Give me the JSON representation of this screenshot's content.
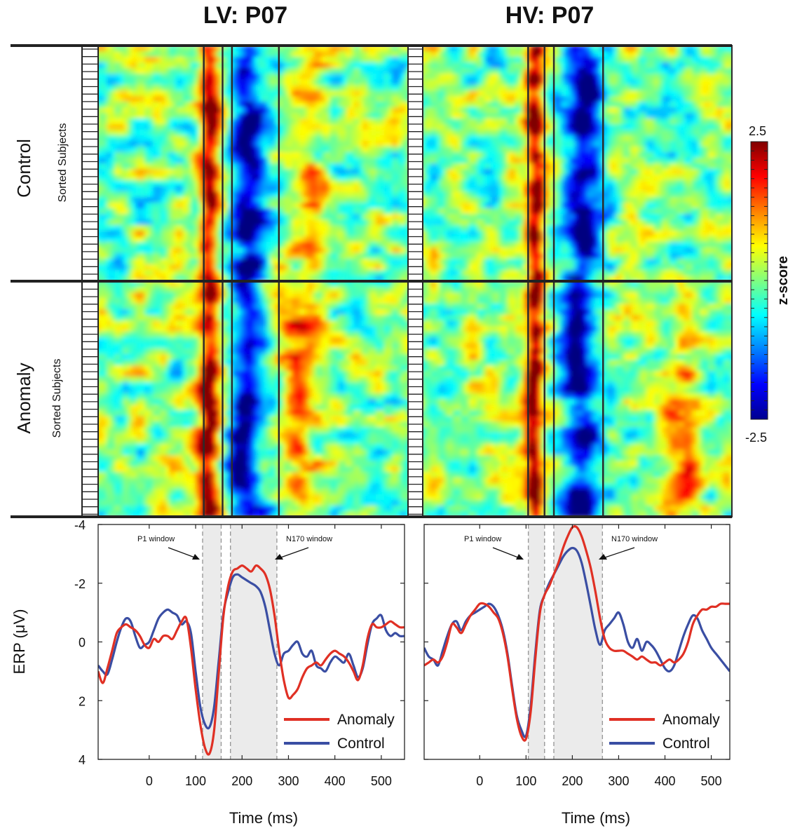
{
  "titles": {
    "left": "LV: P07",
    "right": "HV: P07"
  },
  "row_labels": {
    "control": "Control",
    "anomaly": "Anomaly"
  },
  "sorted_label": "Sorted Subjects",
  "colorbar": {
    "label": "z-score",
    "max_label": "2.5",
    "min_label": "-2.5",
    "min": -2.5,
    "max": 2.5
  },
  "axis": {
    "xlabel": "Time (ms)",
    "ylabel": "ERP (μV)"
  },
  "window_labels": {
    "p1": "P1 window",
    "n170": "N170 window"
  },
  "legend": {
    "anomaly": "Anomaly",
    "control": "Control"
  },
  "colors": {
    "anomaly": "#e03024",
    "control": "#3a4ea3",
    "window_fill": "#ebebeb",
    "frame": "#222222"
  },
  "chart_data": [
    {
      "type": "heatmap",
      "panel": "LV",
      "title": "LV: P07",
      "rows": [
        "Control",
        "Anomaly"
      ],
      "xlim": [
        -110,
        550
      ],
      "vlines_ms": [
        115,
        155,
        175,
        275
      ],
      "clim": [
        -2.5,
        2.5
      ],
      "features": [
        {
          "row": "Control",
          "t": 125,
          "width": 22,
          "z": 2.2
        },
        {
          "row": "Control",
          "t": 210,
          "width": 35,
          "z": -2.3
        },
        {
          "row": "Control",
          "t": 320,
          "width": 40,
          "z": 0.9
        },
        {
          "row": "Anomaly",
          "t": 125,
          "width": 22,
          "z": 2.4
        },
        {
          "row": "Anomaly",
          "t": 210,
          "width": 35,
          "z": -2.3
        },
        {
          "row": "Anomaly",
          "t": 320,
          "width": 45,
          "z": 1.1
        }
      ]
    },
    {
      "type": "heatmap",
      "panel": "HV",
      "title": "HV: P07",
      "rows": [
        "Control",
        "Anomaly"
      ],
      "xlim": [
        -120,
        540
      ],
      "vlines_ms": [
        105,
        140,
        160,
        265
      ],
      "clim": [
        -2.5,
        2.5
      ],
      "features": [
        {
          "row": "Control",
          "t": 120,
          "width": 20,
          "z": 2.4
        },
        {
          "row": "Control",
          "t": 215,
          "width": 40,
          "z": -2.4
        },
        {
          "row": "Anomaly",
          "t": 120,
          "width": 20,
          "z": 2.4
        },
        {
          "row": "Anomaly",
          "t": 215,
          "width": 40,
          "z": -2.4
        },
        {
          "row": "Anomaly",
          "t": 430,
          "width": 40,
          "z": 1.0
        }
      ]
    },
    {
      "type": "line",
      "panel": "LV",
      "xlabel": "Time (ms)",
      "ylabel": "ERP (μV)",
      "xlim": [
        -110,
        550
      ],
      "ylim": [
        4,
        -4
      ],
      "xticks": [
        0,
        100,
        200,
        300,
        400,
        500
      ],
      "yticks": [
        -4,
        -2,
        0,
        2,
        4
      ],
      "windows": [
        {
          "name": "P1 window",
          "range": [
            115,
            155
          ]
        },
        {
          "name": "N170 window",
          "range": [
            175,
            275
          ]
        }
      ],
      "series": [
        {
          "name": "Anomaly",
          "x": [
            -110,
            -100,
            -90,
            -80,
            -70,
            -60,
            -50,
            -40,
            -30,
            -20,
            -10,
            0,
            10,
            20,
            30,
            40,
            50,
            60,
            70,
            80,
            90,
            100,
            110,
            120,
            130,
            140,
            150,
            160,
            170,
            180,
            190,
            200,
            210,
            220,
            230,
            240,
            250,
            260,
            270,
            280,
            290,
            300,
            310,
            320,
            330,
            340,
            350,
            360,
            370,
            380,
            390,
            400,
            410,
            420,
            430,
            440,
            450,
            460,
            470,
            480,
            490,
            500,
            510,
            520,
            530,
            540,
            550
          ],
          "y": [
            1.0,
            1.4,
            0.9,
            0.3,
            -0.3,
            -0.5,
            -0.6,
            -0.5,
            -0.4,
            -0.2,
            0.1,
            0.2,
            -0.1,
            0.0,
            -0.2,
            -0.2,
            -0.1,
            -0.4,
            -0.7,
            -0.8,
            0.2,
            1.6,
            2.8,
            3.6,
            3.8,
            3.0,
            1.0,
            -0.9,
            -1.9,
            -2.4,
            -2.5,
            -2.6,
            -2.5,
            -2.4,
            -2.6,
            -2.5,
            -2.3,
            -1.8,
            -0.9,
            0.3,
            1.3,
            1.9,
            1.8,
            1.6,
            1.2,
            0.9,
            0.8,
            0.7,
            0.8,
            0.6,
            0.4,
            0.3,
            0.4,
            0.5,
            0.7,
            1.0,
            1.3,
            0.8,
            -0.1,
            -0.6,
            -0.5,
            -0.5,
            -0.6,
            -0.7,
            -0.6,
            -0.5,
            -0.5
          ]
        },
        {
          "name": "Control",
          "x": [
            -110,
            -100,
            -90,
            -80,
            -70,
            -60,
            -50,
            -40,
            -30,
            -20,
            -10,
            0,
            10,
            20,
            30,
            40,
            50,
            60,
            70,
            80,
            90,
            100,
            110,
            120,
            130,
            140,
            150,
            160,
            170,
            180,
            190,
            200,
            210,
            220,
            230,
            240,
            250,
            260,
            270,
            280,
            290,
            300,
            310,
            320,
            330,
            340,
            350,
            360,
            370,
            380,
            390,
            400,
            410,
            420,
            430,
            440,
            450,
            460,
            470,
            480,
            490,
            500,
            510,
            520,
            530,
            540,
            550
          ],
          "y": [
            0.8,
            1.0,
            1.1,
            0.6,
            0.0,
            -0.5,
            -0.8,
            -0.7,
            -0.2,
            0.2,
            0.1,
            0.0,
            -0.4,
            -0.8,
            -1.0,
            -1.1,
            -1.0,
            -0.9,
            -0.6,
            -0.7,
            -0.3,
            1.0,
            2.2,
            2.8,
            2.9,
            2.2,
            0.6,
            -1.0,
            -1.7,
            -2.2,
            -2.3,
            -2.2,
            -2.1,
            -2.0,
            -1.9,
            -1.7,
            -1.2,
            -0.4,
            0.4,
            0.8,
            0.4,
            0.3,
            0.1,
            0.0,
            0.4,
            0.5,
            0.3,
            0.8,
            0.9,
            1.0,
            0.7,
            0.5,
            0.6,
            0.7,
            0.4,
            0.8,
            1.2,
            0.9,
            0.1,
            -0.6,
            -0.8,
            -0.9,
            -0.4,
            -0.2,
            -0.3,
            -0.2,
            -0.2
          ]
        }
      ]
    },
    {
      "type": "line",
      "panel": "HV",
      "xlabel": "Time (ms)",
      "ylabel": "",
      "xlim": [
        -120,
        540
      ],
      "ylim": [
        4,
        -4
      ],
      "xticks": [
        0,
        100,
        200,
        300,
        400,
        500
      ],
      "yticks": [
        -4,
        -2,
        0,
        2,
        4
      ],
      "windows": [
        {
          "name": "P1 window",
          "range": [
            105,
            140
          ]
        },
        {
          "name": "N170 window",
          "range": [
            160,
            265
          ]
        }
      ],
      "series": [
        {
          "name": "Anomaly",
          "x": [
            -120,
            -110,
            -100,
            -90,
            -80,
            -70,
            -60,
            -50,
            -40,
            -30,
            -20,
            -10,
            0,
            10,
            20,
            30,
            40,
            50,
            60,
            70,
            80,
            90,
            100,
            110,
            120,
            130,
            140,
            150,
            160,
            170,
            180,
            190,
            200,
            210,
            220,
            230,
            240,
            250,
            260,
            270,
            280,
            290,
            300,
            310,
            320,
            330,
            340,
            350,
            360,
            370,
            380,
            390,
            400,
            410,
            420,
            430,
            440,
            450,
            460,
            470,
            480,
            490,
            500,
            510,
            520,
            530,
            540
          ],
          "y": [
            0.8,
            0.7,
            0.6,
            0.7,
            0.5,
            0.0,
            -0.6,
            -0.5,
            -0.3,
            -0.6,
            -0.9,
            -1.1,
            -1.3,
            -1.3,
            -1.2,
            -1.0,
            -0.8,
            -0.3,
            0.5,
            1.6,
            2.6,
            3.2,
            3.3,
            2.4,
            0.6,
            -1.0,
            -1.6,
            -1.9,
            -2.3,
            -2.7,
            -3.2,
            -3.6,
            -3.9,
            -3.9,
            -3.6,
            -3.1,
            -2.5,
            -1.7,
            -0.8,
            -0.1,
            0.2,
            0.3,
            0.3,
            0.3,
            0.4,
            0.5,
            0.6,
            0.5,
            0.6,
            0.7,
            0.7,
            0.8,
            0.7,
            0.6,
            0.7,
            0.6,
            0.4,
            0.0,
            -0.6,
            -0.9,
            -1.1,
            -1.1,
            -1.2,
            -1.2,
            -1.3,
            -1.3,
            -1.3
          ]
        },
        {
          "name": "Control",
          "x": [
            -120,
            -110,
            -100,
            -90,
            -80,
            -70,
            -60,
            -50,
            -40,
            -30,
            -20,
            -10,
            0,
            10,
            20,
            30,
            40,
            50,
            60,
            70,
            80,
            90,
            100,
            110,
            120,
            130,
            140,
            150,
            160,
            170,
            180,
            190,
            200,
            210,
            220,
            230,
            240,
            250,
            260,
            270,
            280,
            290,
            300,
            310,
            320,
            330,
            340,
            350,
            360,
            370,
            380,
            390,
            400,
            410,
            420,
            430,
            440,
            450,
            460,
            470,
            480,
            490,
            500,
            510,
            520,
            530,
            540
          ],
          "y": [
            0.2,
            0.5,
            0.6,
            0.8,
            0.3,
            -0.2,
            -0.6,
            -0.7,
            -0.4,
            -0.7,
            -0.9,
            -1.0,
            -1.1,
            -1.2,
            -1.3,
            -1.2,
            -0.9,
            -0.4,
            0.4,
            1.5,
            2.5,
            3.0,
            3.2,
            2.2,
            0.4,
            -1.1,
            -1.6,
            -2.0,
            -2.3,
            -2.6,
            -2.9,
            -3.1,
            -3.2,
            -3.1,
            -2.7,
            -2.0,
            -1.2,
            -0.4,
            0.1,
            -0.4,
            -0.6,
            -0.8,
            -1.0,
            -0.6,
            0.0,
            0.2,
            -0.1,
            0.3,
            0.0,
            0.1,
            0.3,
            0.6,
            0.9,
            1.0,
            0.8,
            0.3,
            -0.2,
            -0.6,
            -0.9,
            -0.8,
            -0.4,
            -0.1,
            0.2,
            0.4,
            0.6,
            0.8,
            1.0
          ]
        }
      ]
    }
  ]
}
